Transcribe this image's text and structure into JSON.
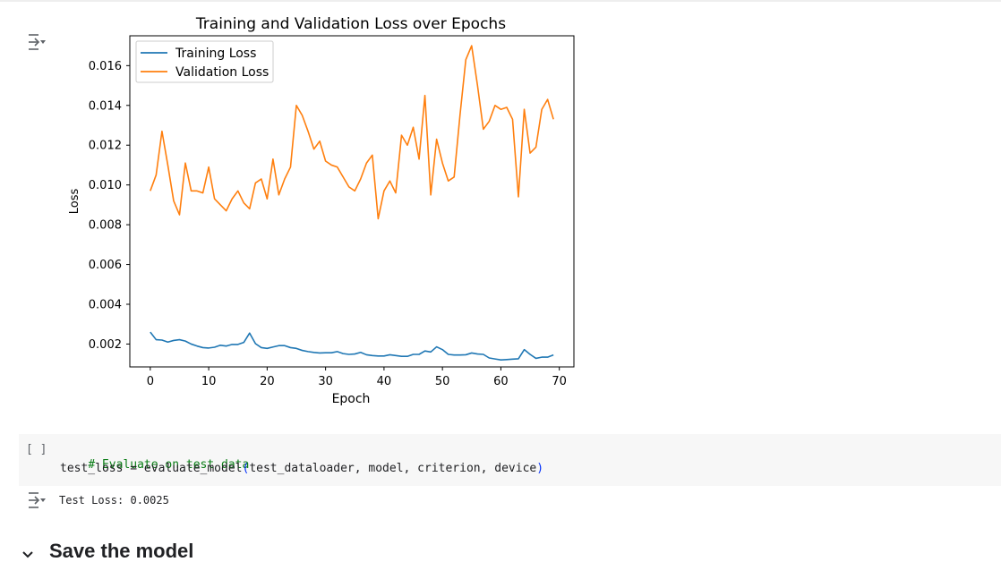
{
  "chart_data": {
    "type": "line",
    "title": "Training and Validation Loss over Epochs",
    "xlabel": "Epoch",
    "ylabel": "Loss",
    "xlim": [
      -3.5,
      72.5
    ],
    "ylim": [
      0.00085,
      0.0175
    ],
    "xticks": [
      0,
      10,
      20,
      30,
      40,
      50,
      60,
      70
    ],
    "yticks": [
      0.002,
      0.004,
      0.006,
      0.008,
      0.01,
      0.012,
      0.014,
      0.016
    ],
    "ytick_labels": [
      "0.002",
      "0.004",
      "0.006",
      "0.008",
      "0.010",
      "0.012",
      "0.014",
      "0.016"
    ],
    "grid": false,
    "legend_position": "upper-left",
    "series": [
      {
        "name": "Training Loss",
        "color": "#1f77b4",
        "values": [
          0.0026,
          0.00222,
          0.0022,
          0.0021,
          0.00218,
          0.00222,
          0.00215,
          0.002,
          0.0019,
          0.00182,
          0.0018,
          0.00184,
          0.00194,
          0.0019,
          0.00198,
          0.00198,
          0.00208,
          0.00255,
          0.00202,
          0.00182,
          0.00178,
          0.00185,
          0.00192,
          0.00192,
          0.00182,
          0.00178,
          0.00168,
          0.00162,
          0.00158,
          0.00155,
          0.00156,
          0.00156,
          0.00162,
          0.00152,
          0.00148,
          0.0015,
          0.00158,
          0.00146,
          0.00142,
          0.0014,
          0.0014,
          0.00146,
          0.00142,
          0.00138,
          0.00138,
          0.00148,
          0.00148,
          0.00165,
          0.0016,
          0.00186,
          0.00172,
          0.00148,
          0.00145,
          0.00145,
          0.00146,
          0.00155,
          0.0015,
          0.00148,
          0.0013,
          0.00125,
          0.0012,
          0.00122,
          0.00124,
          0.00126,
          0.00172,
          0.00148,
          0.00128,
          0.00134,
          0.00134,
          0.00145
        ]
      },
      {
        "name": "Validation Loss",
        "color": "#ff7f0e",
        "values": [
          0.0097,
          0.0105,
          0.0127,
          0.011,
          0.0092,
          0.0085,
          0.0111,
          0.0097,
          0.0097,
          0.0096,
          0.0109,
          0.0093,
          0.009,
          0.0087,
          0.0093,
          0.0097,
          0.0091,
          0.0088,
          0.0101,
          0.0103,
          0.0093,
          0.0113,
          0.0095,
          0.0103,
          0.0109,
          0.014,
          0.0135,
          0.0127,
          0.0118,
          0.0122,
          0.0112,
          0.011,
          0.0109,
          0.0104,
          0.0099,
          0.0097,
          0.0103,
          0.0111,
          0.0115,
          0.0083,
          0.0097,
          0.0102,
          0.0096,
          0.0125,
          0.012,
          0.0129,
          0.0113,
          0.0145,
          0.0095,
          0.0123,
          0.0111,
          0.0102,
          0.0104,
          0.0135,
          0.0163,
          0.017,
          0.015,
          0.0128,
          0.0132,
          0.014,
          0.0138,
          0.0139,
          0.0133,
          0.0094,
          0.0138,
          0.0116,
          0.0119,
          0.0138,
          0.0143,
          0.0133
        ]
      }
    ]
  },
  "code_cell": {
    "run_label": "[ ]",
    "comment": "# Evaluate on test data",
    "line2_prefix": "test_loss = evaluate_model",
    "line2_open": "(",
    "line2_args": "test_dataloader, model, criterion, device",
    "line2_close": ")"
  },
  "output": {
    "text": "Test Loss: 0.0025"
  },
  "section": {
    "title": "Save the model"
  },
  "icons": {
    "output_toggle": "output-toggle-icon",
    "collapse": "chevron-down-icon"
  }
}
